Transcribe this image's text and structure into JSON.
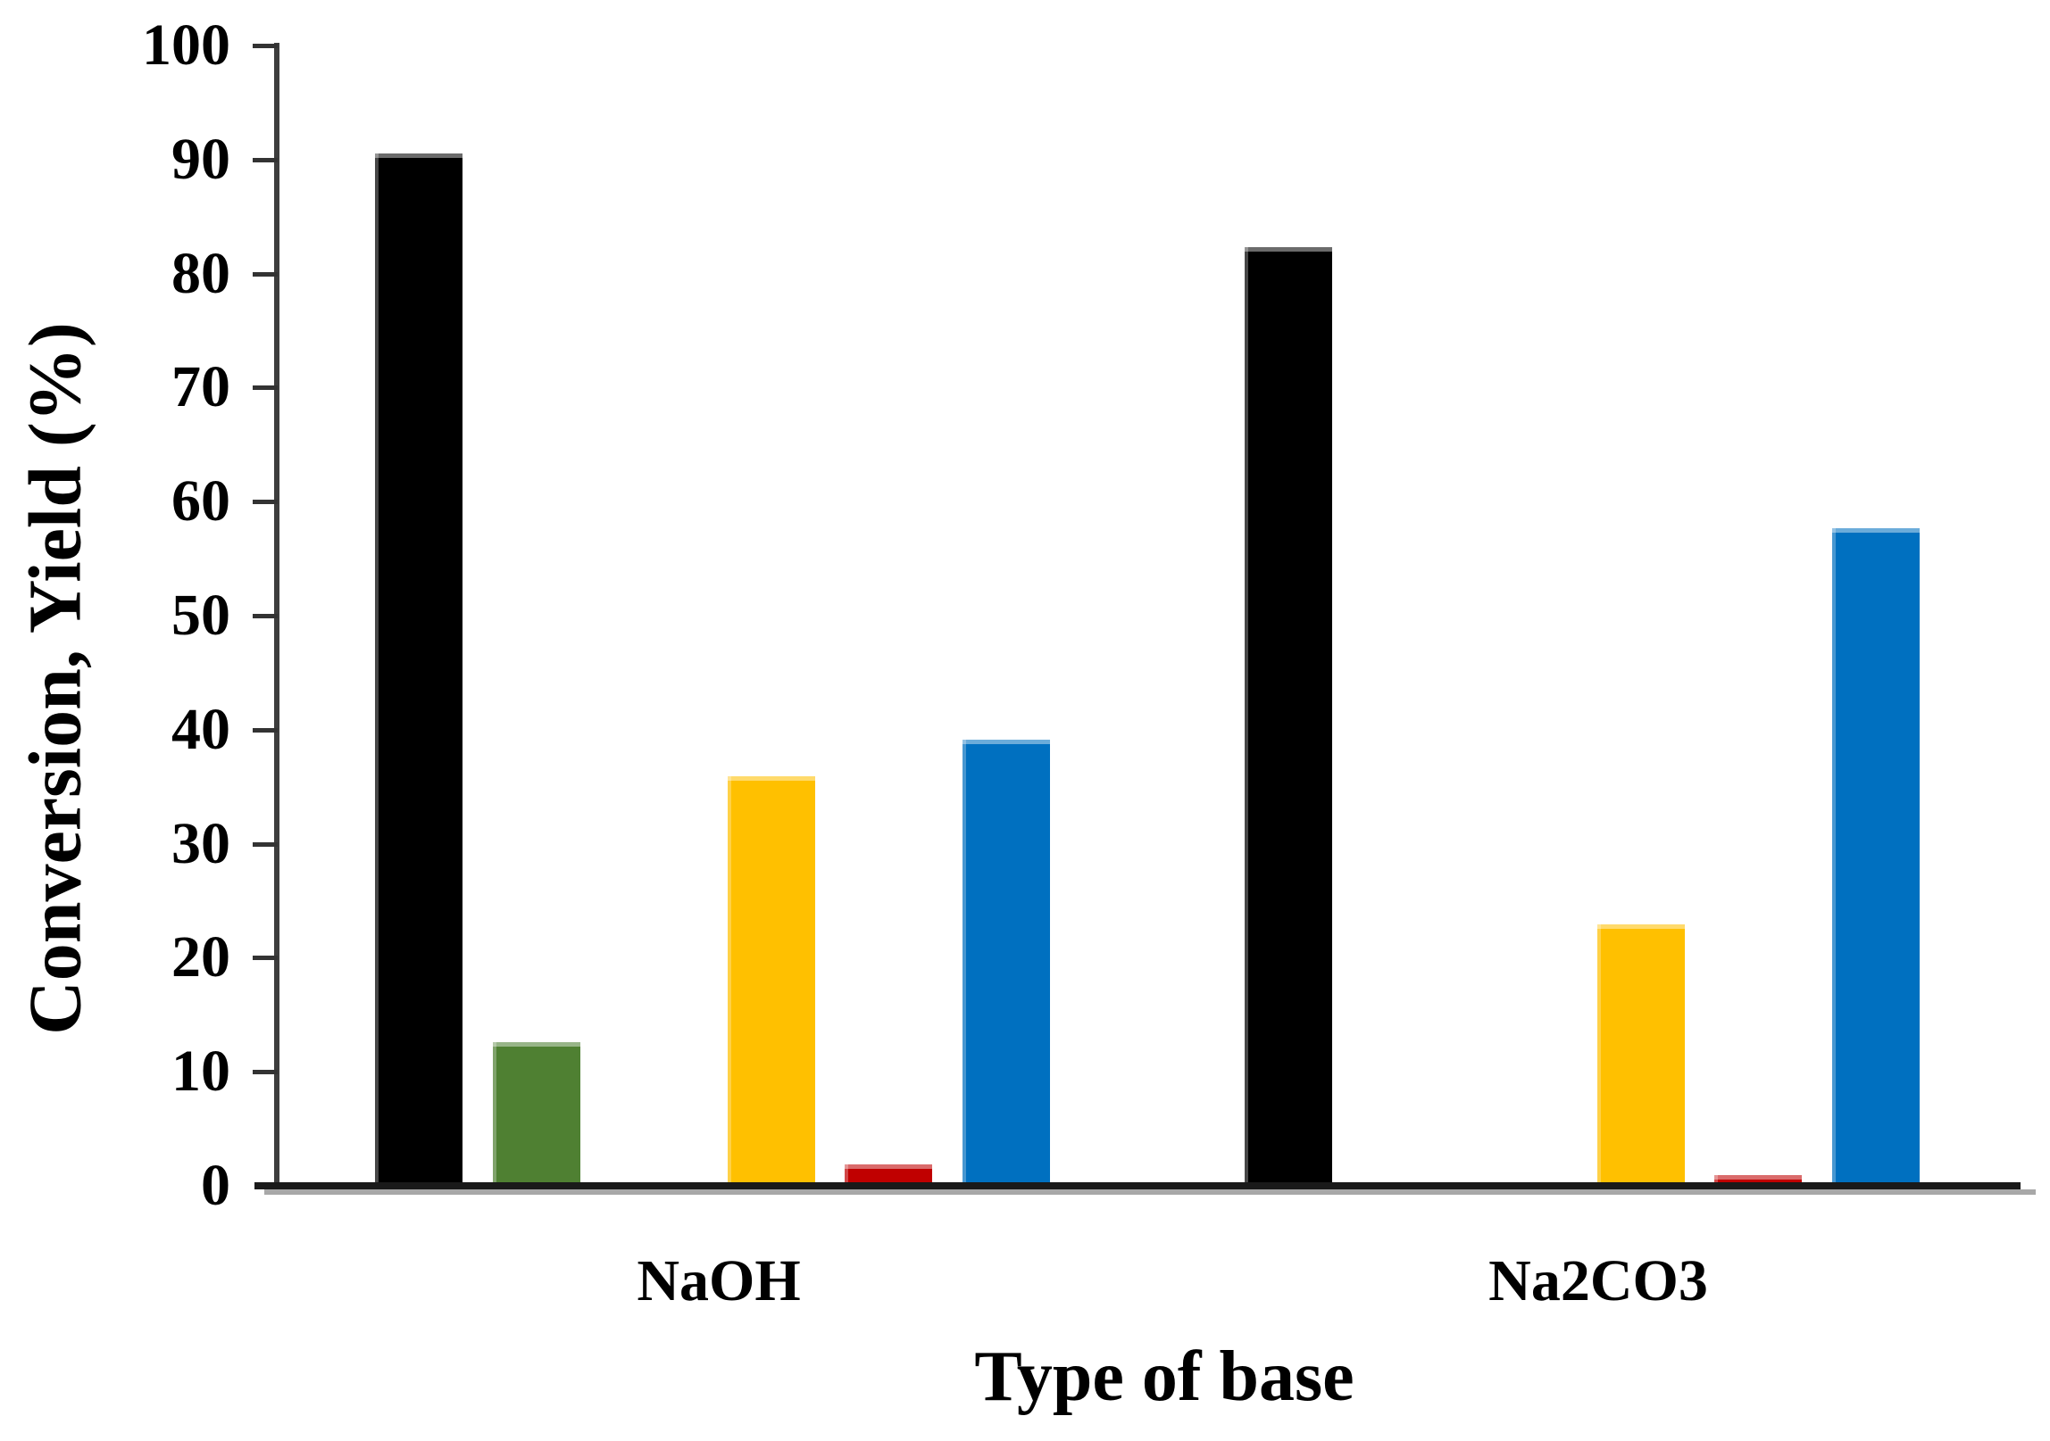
{
  "chart_data": {
    "type": "bar",
    "title": "",
    "xlabel": "Type of base",
    "ylabel": "Conversion, Yield (%)",
    "categories": [
      "NaOH",
      "Na2CO3"
    ],
    "series": [
      {
        "name": "black",
        "color": "#000000",
        "values": [
          90.5,
          82.3
        ]
      },
      {
        "name": "green",
        "color": "#4F8032",
        "values": [
          12.6,
          0
        ]
      },
      {
        "name": "gold",
        "color": "#FFC000",
        "values": [
          35.9,
          22.9
        ]
      },
      {
        "name": "red",
        "color": "#C00000",
        "values": [
          1.9,
          0.9
        ]
      },
      {
        "name": "blue",
        "color": "#0070C0",
        "values": [
          39.1,
          57.7
        ]
      }
    ],
    "ylim": [
      0,
      100
    ],
    "yticks": [
      0,
      10,
      20,
      30,
      40,
      50,
      60,
      70,
      80,
      90,
      100
    ],
    "grid": false,
    "legend_position": "none",
    "axis_color": "#3d3d3d",
    "baseline_color": "#1a1a1a"
  }
}
